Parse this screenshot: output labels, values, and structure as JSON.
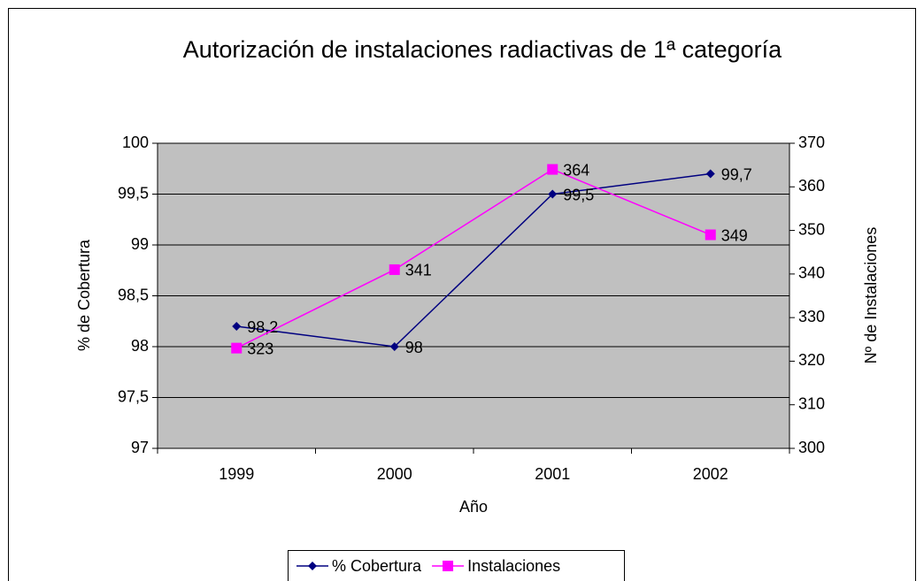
{
  "chart_data": {
    "type": "line",
    "title": "Autorización de instalaciones radiactivas de 1ª categoría",
    "xlabel": "Año",
    "ylabel": "% de Cobertura",
    "y2label": "Nº de Instalaciones",
    "categories": [
      "1999",
      "2000",
      "2001",
      "2002"
    ],
    "series": [
      {
        "name": "% Cobertura",
        "color": "#000080",
        "marker": "diamond",
        "values": [
          98.2,
          98,
          99.5,
          99.7
        ],
        "value_labels": [
          "98,2",
          "98",
          "99,5",
          "99,7"
        ]
      },
      {
        "name": "Instalaciones",
        "color": "#ff00ff",
        "marker": "square",
        "axis": "y2",
        "values": [
          323,
          341,
          364,
          349
        ]
      }
    ],
    "ylim": [
      97,
      100
    ],
    "yticks": [
      97,
      {
        "value": 97.5,
        "label": "97,5"
      },
      98,
      {
        "value": 98.5,
        "label": "98,5"
      },
      99,
      {
        "value": 99.5,
        "label": "99,5"
      },
      100
    ],
    "y2lim": [
      300,
      370
    ],
    "y2ticks": [
      300,
      310,
      320,
      330,
      340,
      350,
      360,
      370
    ],
    "grid": true,
    "legend": "bottom"
  }
}
